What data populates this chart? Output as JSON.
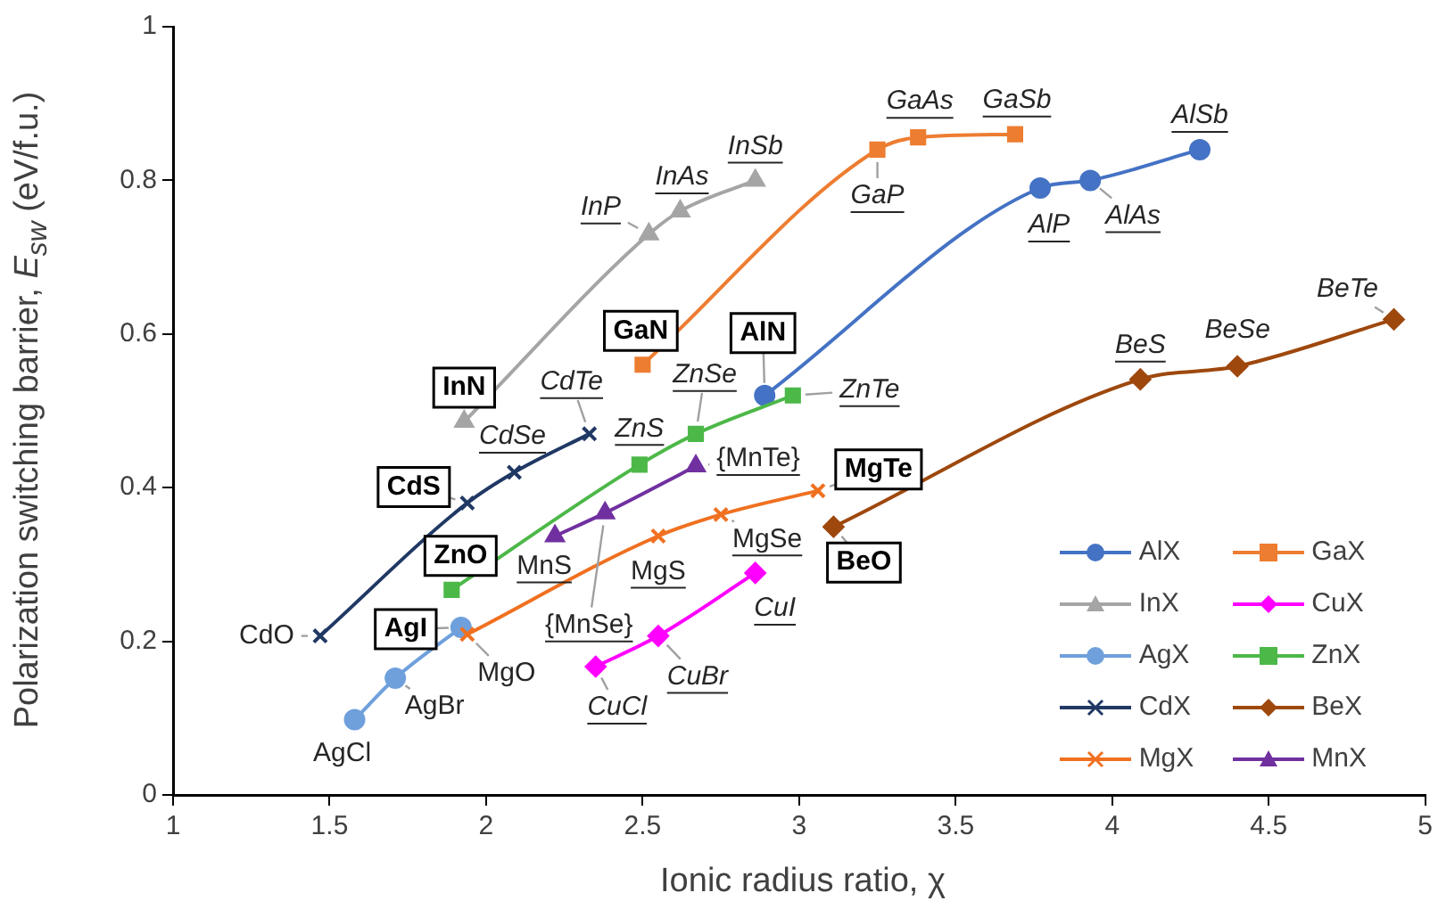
{
  "chart_data": {
    "type": "line",
    "xlabel": "Ionic radius ratio, χ",
    "ylabel": "Polarization switching barrier, E$_{sw}$ (eV/f.u.)",
    "xlim": [
      1,
      5
    ],
    "xticks": [
      1,
      1.5,
      2,
      2.5,
      3,
      3.5,
      4,
      4.5,
      5
    ],
    "ylim": [
      0,
      1
    ],
    "yticks": [
      0,
      0.2,
      0.4,
      0.6,
      0.8,
      1
    ],
    "grid": false,
    "legend": "bottom right",
    "series": [
      {
        "name": "AlX",
        "color": "#4472c4",
        "marker": "circle",
        "x": [
          2.89,
          3.77,
          3.93,
          4.28
        ],
        "values": [
          0.52,
          0.79,
          0.8,
          0.84
        ]
      },
      {
        "name": "GaX",
        "color": "#ed7d31",
        "marker": "square",
        "x": [
          2.5,
          3.25,
          3.38,
          3.69
        ],
        "values": [
          0.56,
          0.84,
          0.856,
          0.86
        ]
      },
      {
        "name": "InX",
        "color": "#a5a5a5",
        "marker": "triangle",
        "x": [
          1.93,
          2.52,
          2.62,
          2.86
        ],
        "values": [
          0.486,
          0.73,
          0.76,
          0.8
        ]
      },
      {
        "name": "CuX",
        "color": "#ff00ff",
        "marker": "diamond",
        "x": [
          2.35,
          2.55,
          2.86
        ],
        "values": [
          0.167,
          0.207,
          0.289
        ]
      },
      {
        "name": "AgX",
        "color": "#6fa0dc",
        "marker": "circle",
        "x": [
          1.58,
          1.71,
          1.92
        ],
        "values": [
          0.098,
          0.152,
          0.218
        ]
      },
      {
        "name": "ZnX",
        "color": "#4cb848",
        "marker": "square",
        "x": [
          1.89,
          2.49,
          2.67,
          2.98
        ],
        "values": [
          0.267,
          0.43,
          0.47,
          0.52
        ]
      },
      {
        "name": "CdX",
        "color": "#203864",
        "marker": "cross",
        "x": [
          1.47,
          1.94,
          2.09,
          2.33
        ],
        "values": [
          0.207,
          0.38,
          0.42,
          0.47
        ]
      },
      {
        "name": "BeX",
        "color": "#9e480e",
        "marker": "diamond",
        "x": [
          3.11,
          4.09,
          4.4,
          4.9
        ],
        "values": [
          0.349,
          0.541,
          0.558,
          0.619
        ]
      },
      {
        "name": "MgX",
        "color": "#f07020",
        "marker": "cross",
        "x": [
          1.94,
          2.55,
          2.75,
          3.06
        ],
        "values": [
          0.209,
          0.337,
          0.365,
          0.396
        ]
      },
      {
        "name": "MnX",
        "color": "#7030a0",
        "marker": "triangle",
        "x": [
          2.22,
          2.38,
          2.67
        ],
        "values": [
          0.337,
          0.367,
          0.428
        ]
      }
    ],
    "annotations": [
      {
        "text": "AlN",
        "x": 2.89,
        "y": 0.52
      },
      {
        "text": "AlP",
        "x": 3.77,
        "y": 0.79
      },
      {
        "text": "AlAs",
        "x": 3.93,
        "y": 0.8
      },
      {
        "text": "AlSb",
        "x": 4.28,
        "y": 0.84
      },
      {
        "text": "GaN",
        "x": 2.5,
        "y": 0.56
      },
      {
        "text": "GaP",
        "x": 3.25,
        "y": 0.84
      },
      {
        "text": "GaAs",
        "x": 3.38,
        "y": 0.856
      },
      {
        "text": "GaSb",
        "x": 3.69,
        "y": 0.86
      },
      {
        "text": "InN",
        "x": 1.93,
        "y": 0.486
      },
      {
        "text": "InP",
        "x": 2.52,
        "y": 0.73
      },
      {
        "text": "InAs",
        "x": 2.62,
        "y": 0.76
      },
      {
        "text": "InSb",
        "x": 2.86,
        "y": 0.8
      },
      {
        "text": "CdO",
        "x": 1.47,
        "y": 0.207
      },
      {
        "text": "CdS",
        "x": 1.94,
        "y": 0.38
      },
      {
        "text": "CdSe",
        "x": 2.09,
        "y": 0.42
      },
      {
        "text": "CdTe",
        "x": 2.33,
        "y": 0.47
      },
      {
        "text": "ZnO",
        "x": 1.89,
        "y": 0.267
      },
      {
        "text": "ZnS",
        "x": 2.49,
        "y": 0.43
      },
      {
        "text": "ZnSe",
        "x": 2.67,
        "y": 0.47
      },
      {
        "text": "ZnTe",
        "x": 2.98,
        "y": 0.52
      },
      {
        "text": "AgCl",
        "x": 1.58,
        "y": 0.098
      },
      {
        "text": "AgBr",
        "x": 1.71,
        "y": 0.152
      },
      {
        "text": "AgI",
        "x": 1.92,
        "y": 0.218
      },
      {
        "text": "MgO",
        "x": 1.94,
        "y": 0.209
      },
      {
        "text": "MgS",
        "x": 2.55,
        "y": 0.337
      },
      {
        "text": "MgSe",
        "x": 2.75,
        "y": 0.365
      },
      {
        "text": "MgTe",
        "x": 3.06,
        "y": 0.396
      },
      {
        "text": "CuCl",
        "x": 2.35,
        "y": 0.167
      },
      {
        "text": "CuBr",
        "x": 2.55,
        "y": 0.207
      },
      {
        "text": "CuI",
        "x": 2.86,
        "y": 0.289
      },
      {
        "text": "MnS",
        "x": 2.22,
        "y": 0.337
      },
      {
        "text": "{MnSe}",
        "x": 2.38,
        "y": 0.367
      },
      {
        "text": "{MnTe}",
        "x": 2.67,
        "y": 0.428
      },
      {
        "text": "BeO",
        "x": 3.11,
        "y": 0.349
      },
      {
        "text": "BeS",
        "x": 4.09,
        "y": 0.541
      },
      {
        "text": "BeSe",
        "x": 4.4,
        "y": 0.558
      },
      {
        "text": "BeTe",
        "x": 4.9,
        "y": 0.619
      }
    ]
  }
}
